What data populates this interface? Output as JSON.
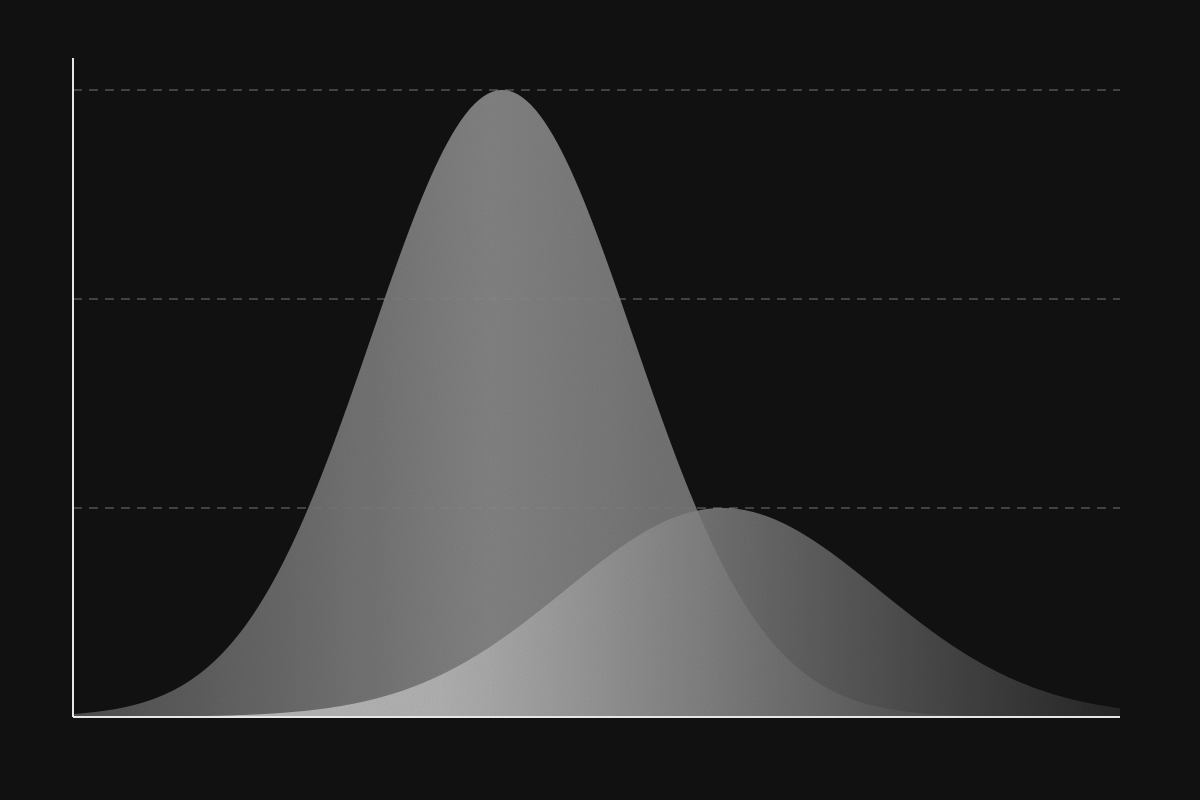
{
  "chart_data": {
    "type": "area",
    "title": "",
    "xlabel": "",
    "ylabel": "",
    "x_range": [
      0,
      10
    ],
    "ylim": [
      0,
      3
    ],
    "grid": "horizontal-dashed",
    "y_gridlines": [
      1,
      2,
      3
    ],
    "legend": "none",
    "series": [
      {
        "shape": "normal-curve",
        "peak_x": 4.1,
        "peak_y": 3.0,
        "sigma": 1.25,
        "color": "#8a8a8a"
      },
      {
        "shape": "normal-curve",
        "peak_x": 6.2,
        "peak_y": 1.0,
        "sigma": 1.5,
        "color": "#bdbdbd"
      }
    ]
  },
  "colors": {
    "background": "#111111",
    "axis": "#e6e6e6",
    "grid": "#7a7a7a"
  }
}
